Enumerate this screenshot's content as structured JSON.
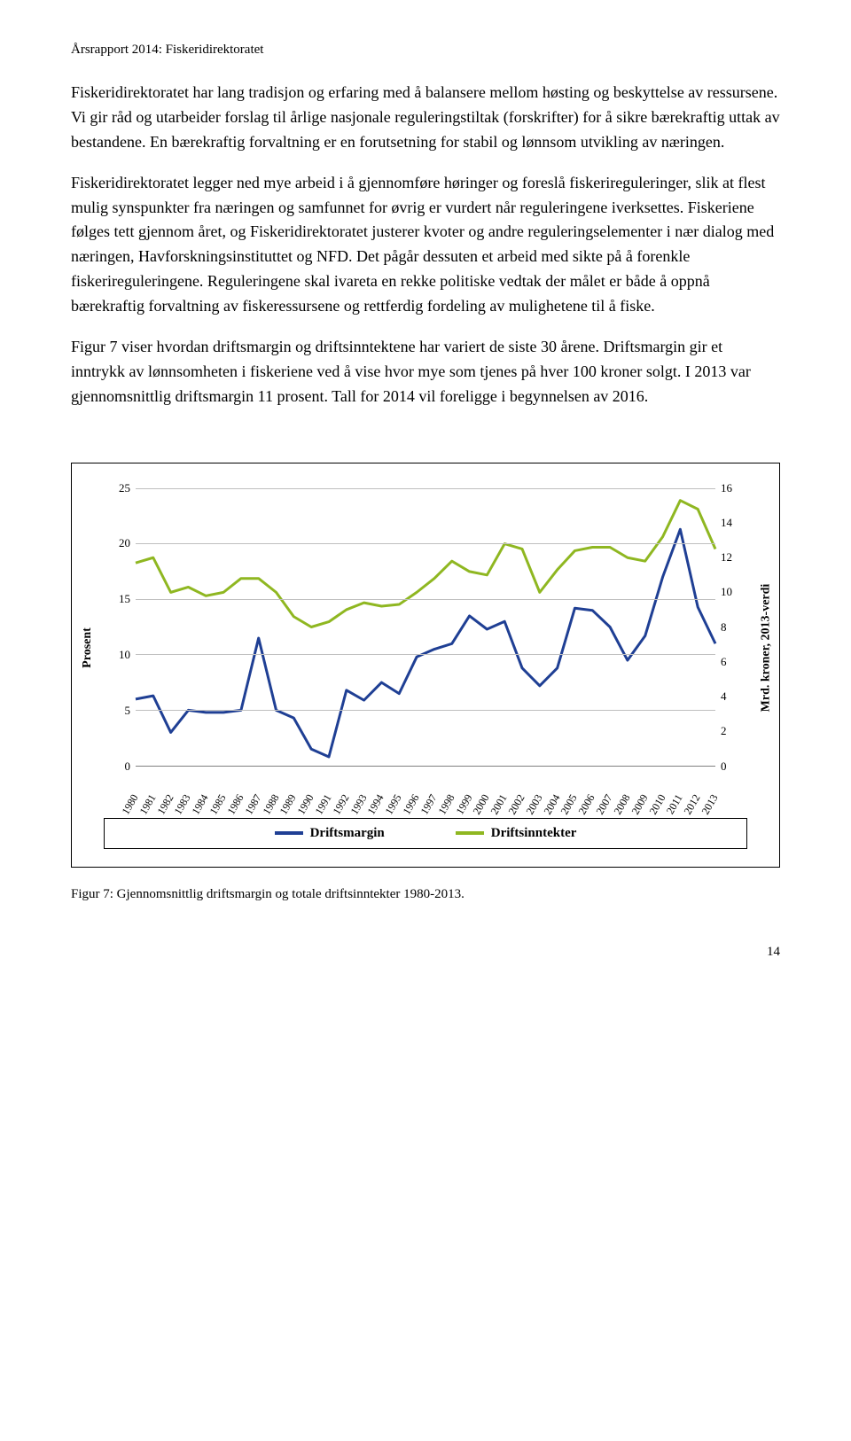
{
  "running_header": "Årsrapport 2014: Fiskeridirektoratet",
  "paragraphs": [
    "Fiskeridirektoratet har lang tradisjon og erfaring med å balansere mellom høsting og beskyttelse av ressursene. Vi gir råd og utarbeider forslag til årlige nasjonale reguleringstiltak (forskrifter) for å sikre bærekraftig uttak av bestandene. En bærekraftig forvaltning er en forutsetning for stabil og lønnsom utvikling av næringen.",
    "Fiskeridirektoratet legger ned mye arbeid i å gjennomføre høringer og foreslå fiskerireguleringer, slik at flest mulig synspunkter fra næringen og samfunnet for øvrig er vurdert når reguleringene iverksettes. Fiskeriene følges tett gjennom året, og Fiskeridirektoratet justerer kvoter og andre reguleringselementer i nær dialog med næringen, Havforskningsinstituttet og NFD. Det pågår dessuten et arbeid med sikte på å forenkle fiskerireguleringene. Reguleringene skal ivareta en rekke politiske vedtak der målet er både å oppnå bærekraftig forvaltning av fiskeressursene og rettferdig fordeling av mulighetene til å fiske.",
    "Figur 7 viser hvordan driftsmargin og driftsinntektene har variert de siste 30 årene. Driftsmargin gir et inntrykk av lønnsomheten i fiskeriene ved å vise hvor mye som tjenes på hver 100 kroner solgt. I 2013 var gjennomsnittlig driftsmargin 11 prosent. Tall for 2014 vil foreligge i begynnelsen av 2016."
  ],
  "chart": {
    "type": "line",
    "y_left": {
      "label": "Prosent",
      "min": 0,
      "max": 25,
      "step": 5
    },
    "y_right": {
      "label": "Mrd. kroner, 2013-verdi",
      "min": 0,
      "max": 16,
      "step": 2
    },
    "x_labels": [
      "1980",
      "1981",
      "1982",
      "1983",
      "1984",
      "1985",
      "1986",
      "1987",
      "1988",
      "1989",
      "1990",
      "1991",
      "1992",
      "1993",
      "1994",
      "1995",
      "1996",
      "1997",
      "1998",
      "1999",
      "2000",
      "2001",
      "2002",
      "2003",
      "2004",
      "2005",
      "2006",
      "2007",
      "2008",
      "2009",
      "2010",
      "2011",
      "2012",
      "2013"
    ],
    "series": [
      {
        "name": "Driftsmargin",
        "axis": "left",
        "color": "#1f3f94",
        "width": 3,
        "values": [
          6.0,
          6.3,
          3.0,
          5.0,
          4.8,
          4.8,
          5.0,
          11.5,
          5.0,
          4.3,
          1.5,
          0.8,
          6.8,
          5.9,
          7.5,
          6.5,
          9.8,
          10.5,
          11.0,
          13.5,
          12.3,
          13.0,
          8.8,
          7.2,
          8.8,
          14.2,
          14.0,
          12.5,
          9.5,
          11.7,
          17.0,
          21.3,
          14.3,
          11.0
        ]
      },
      {
        "name": "Driftsinntekter",
        "axis": "right",
        "color": "#8fb721",
        "width": 3,
        "values": [
          11.7,
          12.0,
          10.0,
          10.3,
          9.8,
          10.0,
          10.8,
          10.8,
          10.0,
          8.6,
          8.0,
          8.3,
          9.0,
          9.4,
          9.2,
          9.3,
          10.0,
          10.8,
          11.8,
          11.2,
          11.0,
          12.8,
          12.5,
          10.0,
          11.3,
          12.4,
          12.6,
          12.6,
          12.0,
          11.8,
          13.2,
          15.3,
          14.8,
          12.5
        ]
      }
    ],
    "grid_color": "#bfbfbf",
    "legend": [
      "Driftsmargin",
      "Driftsinntekter"
    ]
  },
  "figure_caption": "Figur 7: Gjennomsnittlig driftsmargin og totale driftsinntekter 1980-2013.",
  "page_number": "14"
}
